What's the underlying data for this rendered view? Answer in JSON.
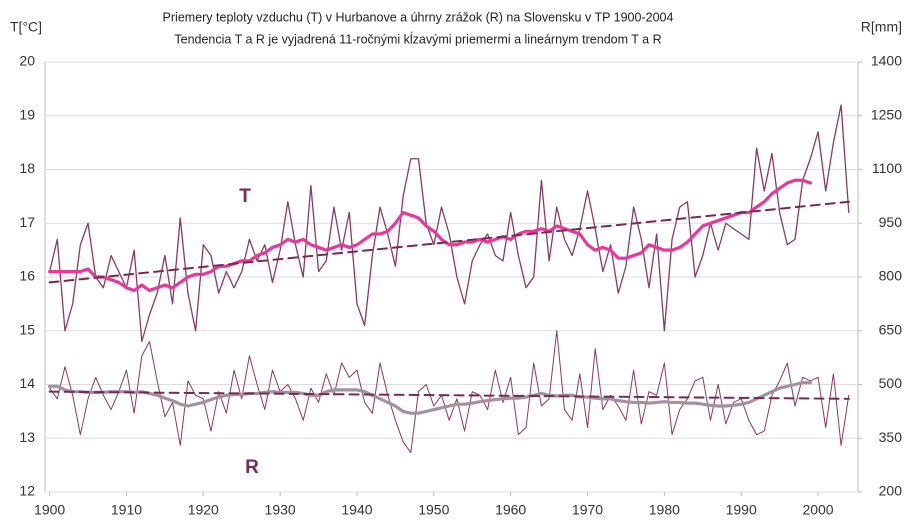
{
  "chart_data": {
    "type": "line",
    "title": "Priemery teploty vzduchu (T) v Hurbanove a úhrny zrážok (R) na Slovensku v TP 1900-2004",
    "subtitle": "Tendencia T a R je vyjadrená 11-ročnými kĺzavými priemermi a lineárnym trendom T a R",
    "ylabel": "T[°C]",
    "y2label": "R[mm]",
    "annotations": [
      "T",
      "R"
    ],
    "xlim": [
      1899.4,
      2005.2
    ],
    "xticks": [
      1900,
      1910,
      1920,
      1930,
      1940,
      1950,
      1960,
      1970,
      1980,
      1990,
      2000
    ],
    "ylim": [
      12,
      20
    ],
    "yticks": [
      12,
      13,
      14,
      15,
      16,
      17,
      18,
      19,
      20
    ],
    "y2lim": [
      200,
      1400
    ],
    "y2ticks": [
      200,
      350,
      500,
      650,
      800,
      950,
      1100,
      1250,
      1400
    ],
    "grid": true,
    "x": [
      1900,
      1901,
      1902,
      1903,
      1904,
      1905,
      1906,
      1907,
      1908,
      1909,
      1910,
      1911,
      1912,
      1913,
      1914,
      1915,
      1916,
      1917,
      1918,
      1919,
      1920,
      1921,
      1922,
      1923,
      1924,
      1925,
      1926,
      1927,
      1928,
      1929,
      1930,
      1931,
      1932,
      1933,
      1934,
      1935,
      1936,
      1937,
      1938,
      1939,
      1940,
      1941,
      1942,
      1943,
      1944,
      1945,
      1946,
      1947,
      1948,
      1949,
      1950,
      1951,
      1952,
      1953,
      1954,
      1955,
      1956,
      1957,
      1958,
      1959,
      1960,
      1961,
      1962,
      1963,
      1964,
      1965,
      1966,
      1967,
      1968,
      1969,
      1970,
      1971,
      1972,
      1973,
      1974,
      1975,
      1976,
      1977,
      1978,
      1979,
      1980,
      1981,
      1982,
      1983,
      1984,
      1985,
      1986,
      1987,
      1988,
      1989,
      1990,
      1991,
      1992,
      1993,
      1994,
      1995,
      1996,
      1997,
      1998,
      1999,
      2000,
      2001,
      2002,
      2003,
      2004
    ],
    "series": [
      {
        "color": "#8a3a62",
        "width": 1.3,
        "values": [
          16.1,
          16.7,
          15.0,
          15.5,
          16.6,
          17.0,
          16.0,
          15.8,
          16.4,
          16.1,
          15.8,
          16.5,
          14.8,
          15.3,
          15.7,
          16.4,
          15.5,
          17.1,
          15.7,
          15.0,
          16.6,
          16.4,
          15.7,
          16.1,
          15.8,
          16.1,
          16.7,
          16.3,
          16.6,
          15.9,
          16.5,
          17.4,
          16.6,
          16.0,
          17.7,
          16.1,
          16.3,
          17.3,
          16.5,
          17.2,
          15.5,
          15.1,
          16.4,
          17.3,
          16.8,
          16.2,
          17.5,
          18.2,
          18.2,
          17.0,
          16.6,
          17.3,
          16.8,
          16.0,
          15.5,
          16.3,
          16.6,
          16.8,
          16.4,
          16.3,
          17.2,
          16.4,
          15.8,
          16.0,
          17.8,
          16.3,
          17.3,
          16.7,
          16.4,
          16.9,
          17.6,
          16.9,
          16.1,
          16.6,
          15.7,
          16.2,
          17.3,
          16.7,
          15.8,
          16.8,
          15.0,
          16.7,
          17.3,
          17.4,
          16.0,
          16.4,
          17.0,
          16.5,
          17.0,
          16.9,
          16.8,
          16.7,
          18.4,
          17.6,
          18.3,
          17.2,
          16.6,
          16.7,
          17.8,
          18.2,
          18.7,
          17.6,
          18.5,
          19.2,
          17.2
        ]
      },
      {
        "color": "#e8389c",
        "width": 3.2,
        "values": [
          16.1,
          16.1,
          16.1,
          16.1,
          16.1,
          16.15,
          16.0,
          16.0,
          15.95,
          15.9,
          15.8,
          15.75,
          15.85,
          15.75,
          15.8,
          15.85,
          15.8,
          15.9,
          16.0,
          16.05,
          16.05,
          16.1,
          16.2,
          16.2,
          16.25,
          16.3,
          16.3,
          16.4,
          16.45,
          16.55,
          16.6,
          16.7,
          16.65,
          16.7,
          16.6,
          16.55,
          16.5,
          16.55,
          16.6,
          16.55,
          16.6,
          16.7,
          16.8,
          16.8,
          16.85,
          17.0,
          17.2,
          17.15,
          17.1,
          16.95,
          16.85,
          16.7,
          16.6,
          16.6,
          16.65,
          16.65,
          16.7,
          16.65,
          16.7,
          16.75,
          16.7,
          16.8,
          16.85,
          16.85,
          16.9,
          16.85,
          16.95,
          16.9,
          16.85,
          16.8,
          16.6,
          16.5,
          16.55,
          16.5,
          16.35,
          16.35,
          16.4,
          16.45,
          16.6,
          16.55,
          16.5,
          16.5,
          16.55,
          16.65,
          16.8,
          16.95,
          17.0,
          17.05,
          17.1,
          17.15,
          17.2,
          17.2,
          17.3,
          17.4,
          17.55,
          17.65,
          17.75,
          17.8,
          17.8,
          17.75,
          null,
          null,
          null,
          null,
          null
        ]
      },
      {
        "color": "#7a2a52",
        "width": 2,
        "dash": true,
        "x": [
          1900,
          2004
        ],
        "values": [
          15.9,
          17.4
        ]
      },
      {
        "color": "#8a3a62",
        "width": 1,
        "axis": "y2",
        "values": [
          490,
          460,
          550,
          470,
          360,
          460,
          520,
          470,
          430,
          480,
          540,
          420,
          580,
          620,
          510,
          410,
          450,
          330,
          510,
          470,
          460,
          370,
          480,
          420,
          540,
          460,
          580,
          500,
          430,
          540,
          480,
          500,
          460,
          400,
          490,
          450,
          530,
          470,
          560,
          520,
          540,
          450,
          420,
          560,
          470,
          400,
          340,
          310,
          480,
          500,
          440,
          470,
          400,
          460,
          370,
          480,
          470,
          430,
          540,
          450,
          520,
          360,
          380,
          560,
          440,
          460,
          650,
          430,
          400,
          530,
          380,
          600,
          430,
          470,
          440,
          400,
          540,
          390,
          480,
          470,
          560,
          360,
          430,
          460,
          510,
          520,
          400,
          500,
          390,
          450,
          460,
          400,
          360,
          370,
          470,
          510,
          560,
          440,
          520,
          510,
          520,
          380,
          530,
          330,
          470
        ]
      },
      {
        "color": "#a3919f",
        "width": 3.2,
        "axis": "y2",
        "values": [
          495,
          495,
          485,
          480,
          480,
          478,
          478,
          478,
          480,
          480,
          480,
          478,
          480,
          475,
          470,
          462,
          455,
          445,
          440,
          445,
          450,
          458,
          465,
          470,
          472,
          472,
          475,
          475,
          478,
          480,
          478,
          478,
          478,
          475,
          470,
          470,
          480,
          485,
          485,
          485,
          485,
          480,
          470,
          460,
          450,
          440,
          425,
          420,
          420,
          425,
          430,
          435,
          440,
          445,
          445,
          448,
          452,
          455,
          458,
          460,
          462,
          462,
          465,
          470,
          475,
          470,
          468,
          470,
          470,
          465,
          465,
          462,
          460,
          460,
          455,
          452,
          450,
          450,
          448,
          450,
          452,
          450,
          450,
          448,
          448,
          445,
          442,
          440,
          440,
          442,
          445,
          450,
          460,
          470,
          480,
          490,
          495,
          500,
          505,
          505,
          null,
          null,
          null,
          null,
          null
        ]
      },
      {
        "color": "#7a2a52",
        "width": 2,
        "dash": true,
        "axis": "y2",
        "x": [
          1900,
          2004
        ],
        "values": [
          480,
          460
        ]
      }
    ]
  }
}
